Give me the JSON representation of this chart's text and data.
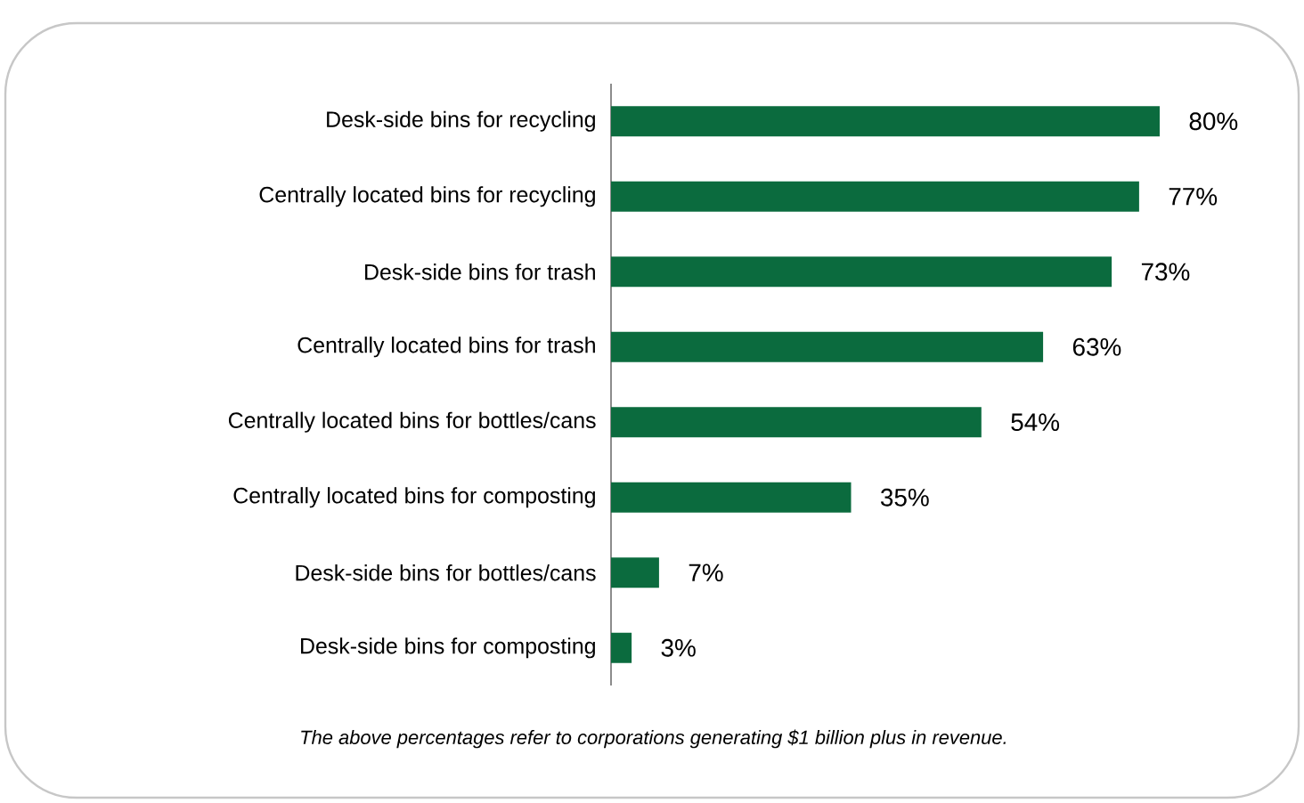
{
  "chart_data": {
    "type": "bar",
    "orientation": "horizontal",
    "categories": [
      "Desk-side bins for recycling",
      "Centrally located bins for recycling",
      "Desk-side bins for trash",
      "Centrally located bins for trash",
      "Centrally located bins for bottles/cans",
      "Centrally located bins for composting",
      "Desk-side bins for bottles/cans",
      "Desk-side bins for composting"
    ],
    "values": [
      80,
      77,
      73,
      63,
      54,
      35,
      7,
      3
    ],
    "value_labels": [
      "80%",
      "77%",
      "73%",
      "63%",
      "54%",
      "35%",
      "7%",
      "3%"
    ],
    "color": "#0b6b3e",
    "annotations": [
      "*The above percentages refer to corporations generating $1 billion plus in revenue.*"
    ]
  }
}
